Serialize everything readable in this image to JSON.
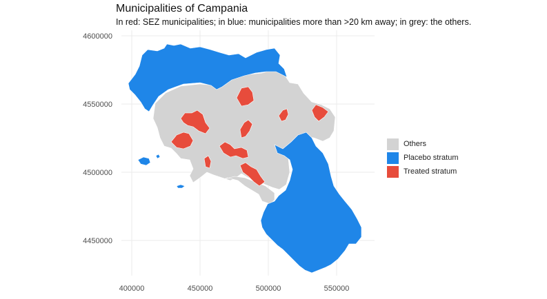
{
  "title": "Municipalities of Campania",
  "subtitle": "In red: SEZ municipalities; in blue: municipalities more than >20 km away; in grey: the others.",
  "colors": {
    "others": "#d3d3d3",
    "placebo": "#1f86e8",
    "treated": "#e74c3c",
    "border": "#ffffff",
    "grid": "#ebebeb"
  },
  "axes": {
    "x_ticks": [
      "400000",
      "450000",
      "500000",
      "550000"
    ],
    "y_ticks": [
      "4600000",
      "4550000",
      "4500000",
      "4450000"
    ]
  },
  "legend": [
    {
      "label": "Others",
      "color": "#d3d3d3"
    },
    {
      "label": "Placebo stratum",
      "color": "#1f86e8"
    },
    {
      "label": "Treated stratum",
      "color": "#e74c3c"
    }
  ],
  "chart_data": {
    "type": "choropleth map",
    "xlim": [
      388000,
      575000
    ],
    "ylim": [
      4420000,
      4605000
    ],
    "grid": true,
    "legend_position": "right",
    "categories": [
      "Others",
      "Placebo stratum",
      "Treated stratum"
    ]
  }
}
